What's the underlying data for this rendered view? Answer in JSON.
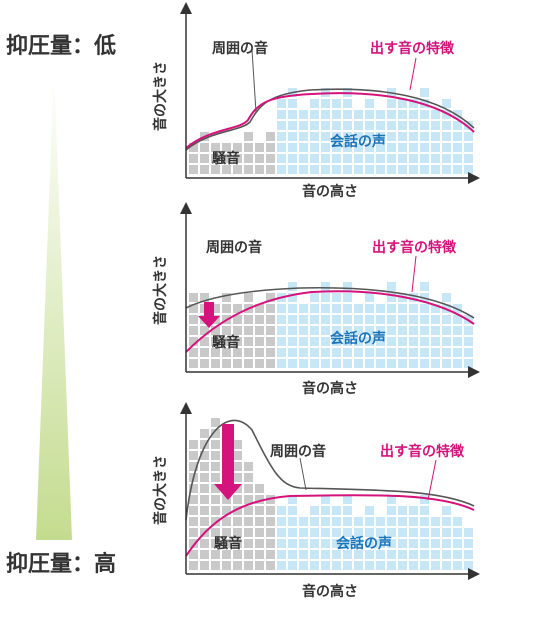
{
  "colors": {
    "speech_bars": "#c7e6f6",
    "noise_bars": "#c9c9c9",
    "ambient_line": "#555555",
    "output_line": "#d5137c",
    "speech_text": "#1b73b8",
    "output_text": "#d5137c",
    "wedge_top": "#ffffff",
    "wedge_bottom": "#c4dc8f",
    "arrow": "#d5137c"
  },
  "side_labels": {
    "top": "抑圧量：低",
    "bottom": "抑圧量：高"
  },
  "panels": [
    {
      "level": "low",
      "y_axis_label": "音の大きさ",
      "x_axis_label": "音の高さ",
      "ambient_label": "周囲の音",
      "output_label": "出す音の特徴",
      "noise_label": "騒音",
      "speech_label": "会話の声"
    },
    {
      "level": "medium",
      "y_axis_label": "音の大きさ",
      "x_axis_label": "音の高さ",
      "ambient_label": "周囲の音",
      "output_label": "出す音の特徴",
      "noise_label": "騒音",
      "speech_label": "会話の声"
    },
    {
      "level": "high",
      "y_axis_label": "音の大きさ",
      "x_axis_label": "音の高さ",
      "ambient_label": "周囲の音",
      "output_label": "出す音の特徴",
      "noise_label": "騒音",
      "speech_label": "会話の声"
    }
  ]
}
